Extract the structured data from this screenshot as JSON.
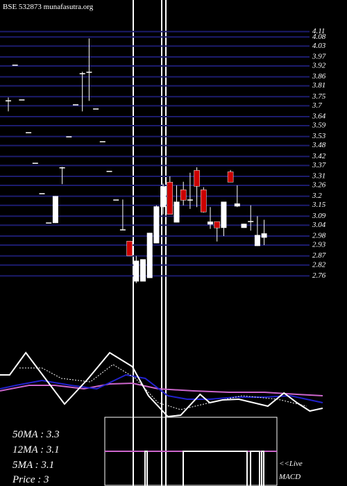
{
  "chart_data": [
    {
      "type": "candlestick",
      "title": "BSE 532873 munafasutra.org",
      "ylim": [
        2.7,
        4.2
      ],
      "yticks": [
        4.11,
        4.08,
        4.03,
        3.97,
        3.92,
        3.86,
        3.81,
        3.75,
        3.7,
        3.64,
        3.59,
        3.53,
        3.48,
        3.42,
        3.37,
        3.31,
        3.26,
        3.2,
        3.15,
        3.09,
        3.04,
        2.98,
        2.93,
        2.87,
        2.82,
        2.76
      ],
      "grid": true,
      "grid_color": "#1c1c6e",
      "up_color": "#ffffff",
      "down_color": "#cc0000",
      "open": [
        3.73,
        3.927,
        3.735,
        3.554,
        3.385,
        3.217,
        3.055,
        3.052,
        3.36,
        3.531,
        3.708,
        3.88,
        3.888,
        3.685,
        3.504,
        3.34,
        3.182,
        3.017,
        2.952,
        2.729,
        2.729,
        2.748,
        2.94,
        3.14,
        3.278,
        3.055,
        3.236,
        3.182,
        3.343,
        3.236,
        3.044,
        3.06,
        3.025,
        3.335,
        3.144,
        3.025,
        3.063,
        2.925,
        2.971
      ],
      "close": [
        3.73,
        3.927,
        3.735,
        3.554,
        3.385,
        3.217,
        3.055,
        3.201,
        3.36,
        3.531,
        3.708,
        3.88,
        3.888,
        3.685,
        3.504,
        3.34,
        3.182,
        3.017,
        2.871,
        2.844,
        2.852,
        2.998,
        3.144,
        3.255,
        3.1,
        3.17,
        3.178,
        3.182,
        3.255,
        3.113,
        3.06,
        3.025,
        3.17,
        3.278,
        3.16,
        3.048,
        3.063,
        2.986,
        2.995
      ],
      "high": [
        3.746,
        3.927,
        3.735,
        3.554,
        3.385,
        3.217,
        3.055,
        3.201,
        3.362,
        3.531,
        3.708,
        3.888,
        4.072,
        3.685,
        3.504,
        3.34,
        3.182,
        3.182,
        2.952,
        2.87,
        2.852,
        2.998,
        3.15,
        3.27,
        3.31,
        3.26,
        3.28,
        3.33,
        3.36,
        3.25,
        3.14,
        3.06,
        3.17,
        3.345,
        3.26,
        3.048,
        3.15,
        3.09,
        3.07
      ],
      "low": [
        3.669,
        3.927,
        3.735,
        3.554,
        3.385,
        3.217,
        3.055,
        3.052,
        3.267,
        3.531,
        3.708,
        3.669,
        3.727,
        3.685,
        3.504,
        3.34,
        3.182,
        3.017,
        2.871,
        2.72,
        2.729,
        2.748,
        2.94,
        3.1,
        3.1,
        3.055,
        3.15,
        3.13,
        3.14,
        3.11,
        3.02,
        2.95,
        2.98,
        3.278,
        3.14,
        3.025,
        3.01,
        2.925,
        2.93
      ]
    },
    {
      "type": "line",
      "xlim": [
        0,
        100
      ],
      "ylim": [
        0,
        100
      ],
      "annotations": [
        "50MA : 3.3",
        "12MA : 3.1",
        "5MA : 3.1",
        "Price   : 3",
        "<<Live",
        "MACD"
      ],
      "series": [
        {
          "name": "50MA",
          "color": "#cc66cc",
          "x": [
            0,
            9,
            17,
            26,
            34,
            41,
            49,
            60,
            71,
            82,
            92,
            100
          ],
          "values": [
            37,
            45,
            45,
            40,
            47,
            48,
            40,
            37,
            35,
            35,
            32,
            30
          ]
        },
        {
          "name": "12MA",
          "color": "#2222cc",
          "x": [
            0,
            5,
            13,
            22,
            30,
            39,
            45,
            52,
            58,
            65,
            73,
            82,
            90,
            100
          ],
          "values": [
            40,
            45,
            52,
            45,
            40,
            60,
            55,
            30,
            25,
            25,
            28,
            28,
            30,
            20
          ]
        },
        {
          "name": "5MA",
          "color": "#ffffff",
          "dashed": true,
          "x": [
            6,
            13,
            19,
            28,
            35,
            42,
            49,
            56,
            65,
            75,
            86,
            95
          ],
          "values": [
            70,
            70,
            55,
            50,
            75,
            55,
            20,
            10,
            20,
            30,
            25,
            15
          ]
        },
        {
          "name": "Price",
          "color": "#ffffff",
          "x": [
            0,
            3,
            8,
            14,
            20,
            27,
            34,
            41,
            46,
            52,
            56,
            62,
            65,
            69,
            74,
            83,
            88,
            92,
            96,
            100
          ],
          "values": [
            60,
            60,
            92,
            55,
            18,
            53,
            92,
            72,
            30,
            0,
            2,
            32,
            20,
            24,
            25,
            15,
            34,
            20,
            8,
            12
          ]
        }
      ]
    }
  ]
}
